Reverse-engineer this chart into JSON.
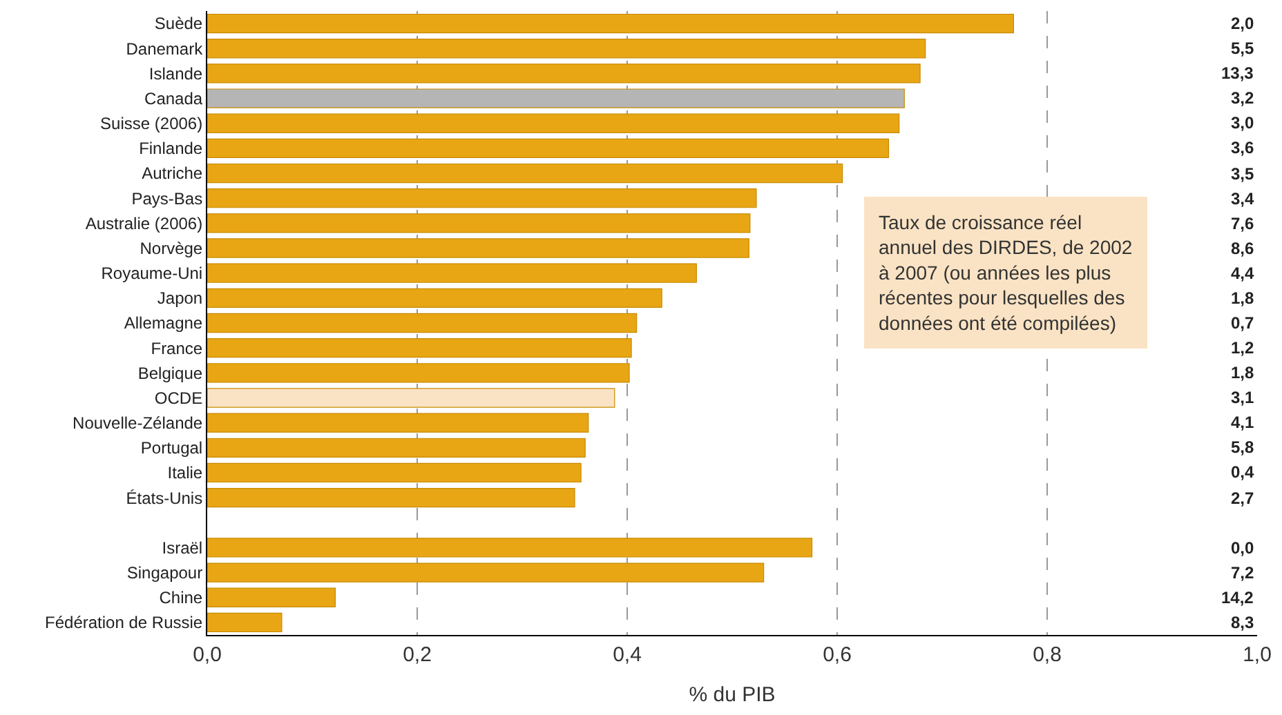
{
  "chart_data": {
    "type": "bar",
    "orientation": "horizontal",
    "xlabel": "% du PIB",
    "categories": [
      "Suède",
      "Danemark",
      "Islande",
      "Canada",
      "Suisse (2006)",
      "Finlande",
      "Autriche",
      "Pays-Bas",
      "Australie (2006)",
      "Norvège",
      "Royaume-Uni",
      "Japon",
      "Allemagne",
      "France",
      "Belgique",
      "OCDE",
      "Nouvelle-Zélande",
      "Portugal",
      "Italie",
      "États-Unis",
      null,
      "Israël",
      "Singapour",
      "Chine",
      "Fédération de Russie"
    ],
    "values": [
      0.768,
      0.684,
      0.679,
      0.664,
      0.659,
      0.649,
      0.605,
      0.523,
      0.517,
      0.516,
      0.466,
      0.433,
      0.409,
      0.404,
      0.402,
      0.388,
      0.363,
      0.36,
      0.356,
      0.35,
      null,
      0.576,
      0.53,
      0.122,
      0.071
    ],
    "colors": [
      "#e8a615",
      "#e8a615",
      "#e8a615",
      "#b5b5b5",
      "#e8a615",
      "#e8a615",
      "#e8a615",
      "#e8a615",
      "#e8a615",
      "#e8a615",
      "#e8a615",
      "#e8a615",
      "#e8a615",
      "#e8a615",
      "#e8a615",
      "#fae3c4",
      "#e8a615",
      "#e8a615",
      "#e8a615",
      "#e8a615",
      "#e8a615",
      "#e8a615",
      "#e8a615",
      "#e8a615",
      "#e8a615"
    ],
    "xlim": [
      0,
      1.0
    ],
    "xticks": [
      {
        "value": 0,
        "label": "0,0"
      },
      {
        "value": 0.2,
        "label": "0,2"
      },
      {
        "value": 0.4,
        "label": "0,4"
      },
      {
        "value": 0.6,
        "label": "0,6"
      },
      {
        "value": 0.8,
        "label": "0,8"
      },
      {
        "value": 1.0,
        "label": "1,0"
      }
    ],
    "grid": "x",
    "annotations": [
      "2,0",
      "5,5",
      "13,3",
      "3,2",
      "3,0",
      "3,6",
      "3,5",
      "3,4",
      "7,6",
      "8,6",
      "4,4",
      "1,8",
      "0,7",
      "1,2",
      "1,8",
      "3,1",
      "4,1",
      "5,8",
      "0,4",
      "2,7",
      "0,0",
      "7,2",
      "14,2",
      "8,3",
      "Taux de croissance réel\nannuel des DIRDES, de 2002\nà 2007 (ou années les plus\nrécentes pour lesquelles des\ndonnées ont été compilées)"
    ]
  }
}
